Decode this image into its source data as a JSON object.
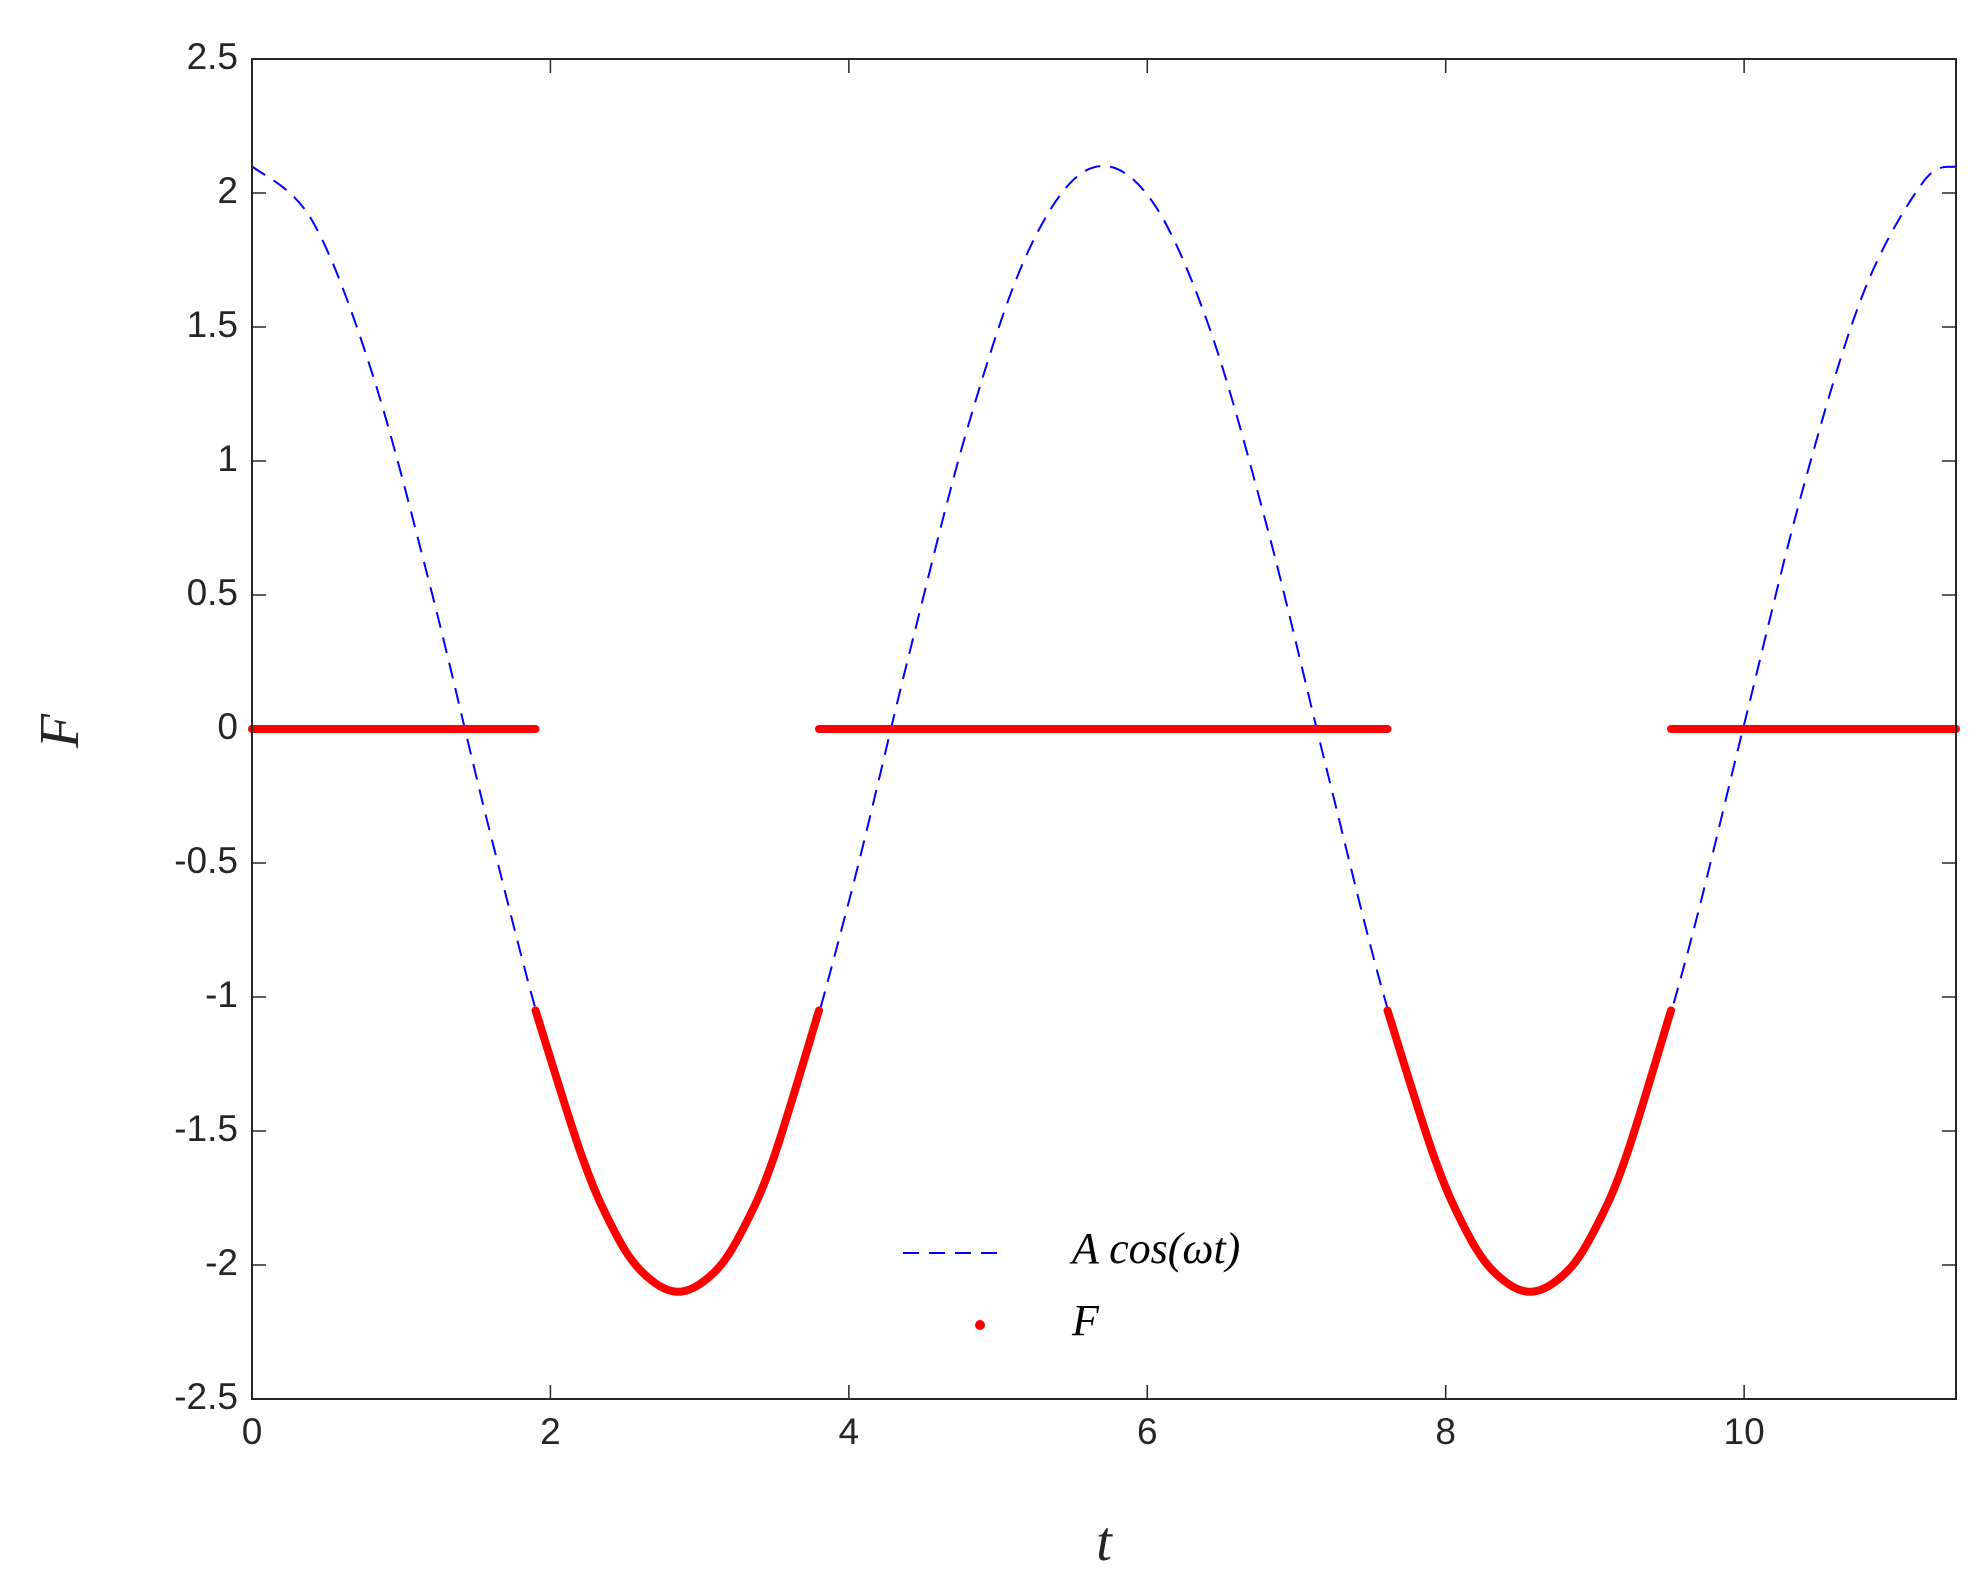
{
  "chart_data": {
    "type": "line",
    "xlabel": "t",
    "ylabel": "F",
    "xlim": [
      0,
      11.42
    ],
    "ylim": [
      -2.5,
      2.5
    ],
    "xticks": [
      0,
      2,
      4,
      6,
      8,
      10
    ],
    "yticks": [
      -2.5,
      -2,
      -1.5,
      -1,
      -0.5,
      0,
      0.5,
      1,
      1.5,
      2,
      2.5
    ],
    "series": [
      {
        "name": "A cos(ωt)",
        "color": "#0000ff",
        "style": "dashed",
        "x": [
          0,
          0.4,
          0.8,
          1.2,
          1.6,
          2.0,
          2.4,
          2.8,
          3.2,
          3.6,
          4.0,
          4.4,
          4.8,
          5.2,
          5.6,
          6.0,
          6.4,
          6.8,
          7.2,
          7.6,
          8.0,
          8.4,
          8.8,
          9.2,
          9.6,
          10.0,
          10.4,
          10.8,
          11.2,
          11.42
        ],
        "values": [
          2.1,
          1.9,
          1.337,
          0.52,
          -0.396,
          -1.237,
          -1.843,
          -2.096,
          -1.949,
          -1.429,
          -0.644,
          0.27,
          1.132,
          1.78,
          2.087,
          1.994,
          1.523,
          0.76,
          -0.145,
          -1.023,
          -1.708,
          -2.064,
          -2.032,
          -1.608,
          -0.879,
          0.017,
          0.908,
          1.628,
          2.041,
          2.1
        ]
      },
      {
        "name": "F",
        "color": "#ff0000",
        "style": "dots",
        "x": [
          0,
          1.9,
          null,
          1.9,
          2.2,
          2.4,
          2.6,
          2.85,
          3.1,
          3.3,
          3.5,
          3.8,
          null,
          3.8,
          7.61,
          null,
          7.61,
          7.91,
          8.11,
          8.31,
          8.56,
          8.81,
          9.01,
          9.21,
          9.51,
          null,
          9.51,
          11.42
        ],
        "values": [
          0,
          0,
          null,
          -1.05,
          -1.577,
          -1.843,
          -2.018,
          -2.1,
          -2.026,
          -1.856,
          -1.594,
          -1.05,
          null,
          0,
          0,
          null,
          -1.05,
          -1.577,
          -1.843,
          -2.018,
          -2.1,
          -2.026,
          -1.856,
          -1.594,
          -1.05,
          null,
          0,
          0
        ]
      }
    ]
  }
}
